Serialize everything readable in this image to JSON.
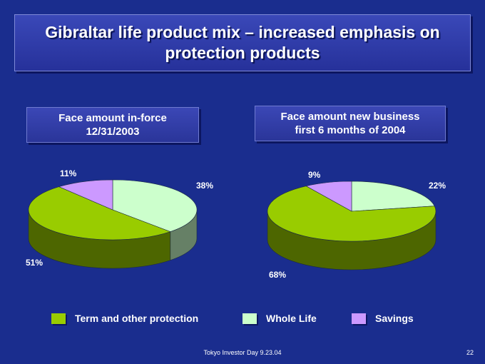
{
  "title": "Gibraltar life product mix – increased emphasis on\nprotection products",
  "colors": {
    "background": "#1a2d8e",
    "term": "#99cc00",
    "whole_life": "#ccffcc",
    "savings": "#cc99ff"
  },
  "legend": [
    {
      "label": "Term and other protection",
      "color": "#99cc00"
    },
    {
      "label": "Whole Life",
      "color": "#ccffcc"
    },
    {
      "label": "Savings",
      "color": "#cc99ff"
    }
  ],
  "chart_data": [
    {
      "type": "pie",
      "title": "Face amount in-force\n12/31/2003",
      "categories": [
        "Whole Life",
        "Term and other protection",
        "Savings"
      ],
      "values": [
        38,
        51,
        11
      ],
      "labels": [
        "38%",
        "51%",
        "11%"
      ],
      "legend_placement": "bottom"
    },
    {
      "type": "pie",
      "title": "Face amount new business\nfirst 6 months of 2004",
      "categories": [
        "Whole Life",
        "Term and other protection",
        "Savings"
      ],
      "values": [
        22,
        68,
        9
      ],
      "labels": [
        "22%",
        "68%",
        "9%"
      ],
      "legend_placement": "bottom"
    }
  ],
  "footer": {
    "text": "Tokyo Investor Day 9.23.04",
    "page": "22"
  }
}
